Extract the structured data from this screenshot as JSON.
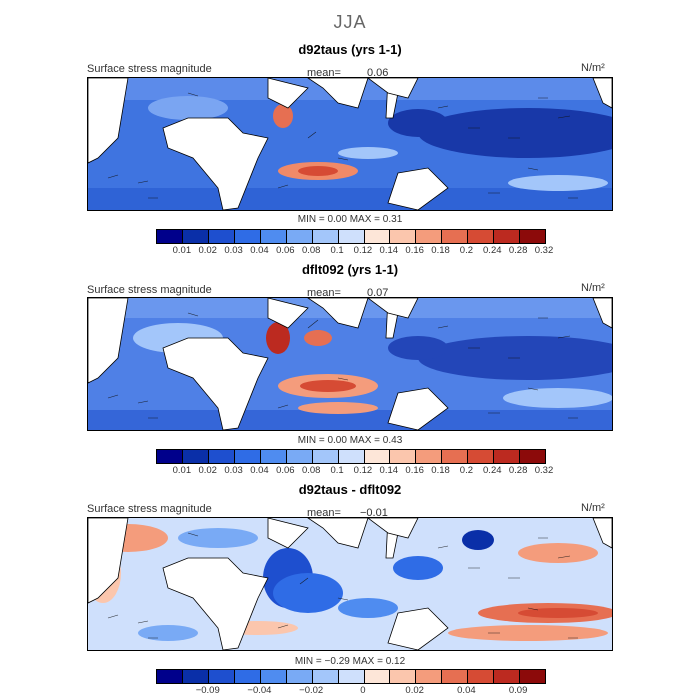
{
  "main_title": "JJA",
  "units": "N/m²",
  "palette": [
    "#00008b",
    "#0a2fa8",
    "#1e4fcf",
    "#2f6ce6",
    "#4f8cf0",
    "#79aaf5",
    "#a3c6fa",
    "#cfe0fc",
    "#fde6d8",
    "#fbc6ad",
    "#f49c7c",
    "#e66f52",
    "#d64b34",
    "#bc2a20",
    "#8c0a0a"
  ],
  "panels": [
    {
      "title": "d92taus (yrs 1-1)",
      "label": "Surface stress magnitude",
      "mean_label": "mean=",
      "mean_value": "0.06",
      "min_label": "MIN =",
      "min_value": "0.00",
      "max_label": "MAX =",
      "max_value": "0.31",
      "ticks": [
        "0.01",
        "0.02",
        "0.03",
        "0.04",
        "0.06",
        "0.08",
        "0.1",
        "0.12",
        "0.14",
        "0.16",
        "0.18",
        "0.2",
        "0.24",
        "0.28",
        "0.32"
      ]
    },
    {
      "title": "dflt092 (yrs 1-1)",
      "label": "Surface stress magnitude",
      "mean_label": "mean=",
      "mean_value": "0.07",
      "min_label": "MIN =",
      "min_value": "0.00",
      "max_label": "MAX =",
      "max_value": "0.43",
      "ticks": [
        "0.01",
        "0.02",
        "0.03",
        "0.04",
        "0.06",
        "0.08",
        "0.1",
        "0.12",
        "0.14",
        "0.16",
        "0.18",
        "0.2",
        "0.24",
        "0.28",
        "0.32"
      ]
    },
    {
      "title": "d92taus - dflt092",
      "label": "Surface stress magnitude",
      "mean_label": "mean=",
      "mean_value": "−0.01",
      "min_label": "MIN =",
      "min_value": "−0.29",
      "max_label": "MAX =",
      "max_value": "0.12",
      "ticks": [
        "",
        "−0.09",
        "",
        "−0.04",
        "",
        "−0.02",
        "",
        "0",
        "",
        "0.02",
        "",
        "0.04",
        "",
        "0.09",
        ""
      ]
    }
  ]
}
